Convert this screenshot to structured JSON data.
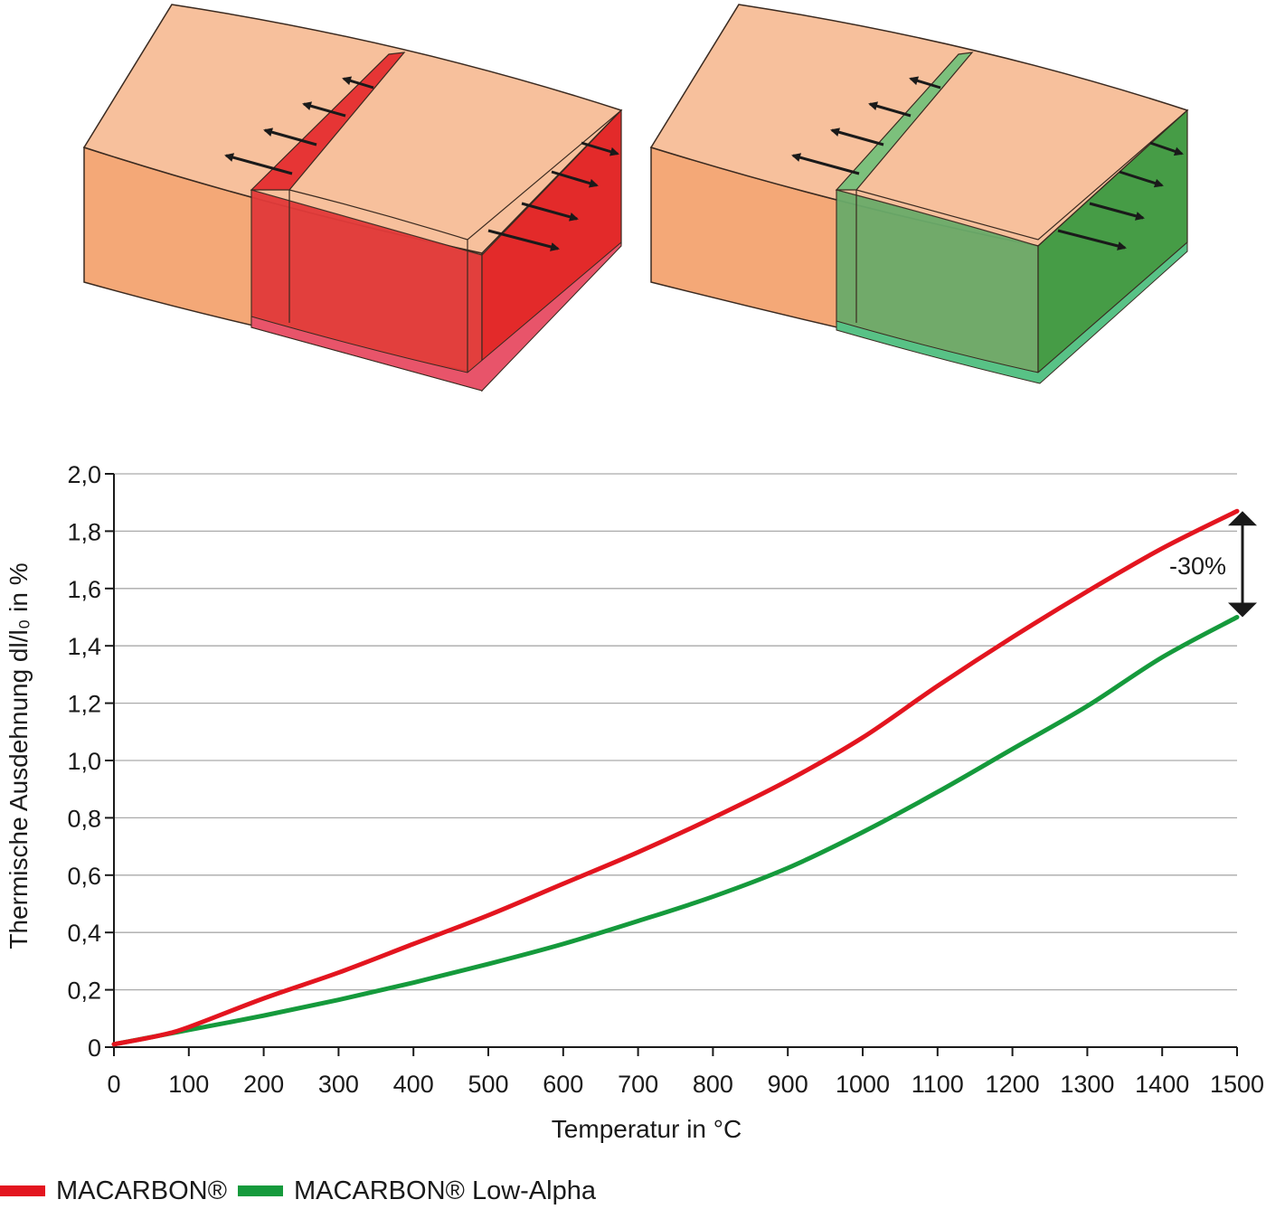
{
  "colors": {
    "macarbon": "#e3151f",
    "low_alpha": "#159a3c",
    "block_top": "#f7c09c",
    "block_side": "#f4a877",
    "red_fill": "#e7302f",
    "green_fill": "#49a14a",
    "grid": "#aaaaaa"
  },
  "chart_data": {
    "type": "line",
    "xlabel": "Temperatur in °C",
    "ylabel": "Thermische Ausdehnung dl/l₀ in %",
    "xlim": [
      0,
      1500
    ],
    "ylim": [
      0,
      2.0
    ],
    "x_ticks": [
      "0",
      "100",
      "200",
      "300",
      "400",
      "500",
      "600",
      "700",
      "800",
      "900",
      "1000",
      "1100",
      "1200",
      "1300",
      "1400",
      "1500"
    ],
    "y_ticks": [
      "0",
      "0,2",
      "0,4",
      "0,6",
      "0,8",
      "1,0",
      "1,2",
      "1,4",
      "1,6",
      "1,8",
      "2,0"
    ],
    "grid": "horizontal",
    "annotation": "-30%",
    "series": [
      {
        "name": "MACARBON®",
        "x": [
          0,
          60,
          100,
          200,
          300,
          400,
          500,
          600,
          700,
          800,
          900,
          1000,
          1100,
          1200,
          1300,
          1400,
          1500
        ],
        "y": [
          0.01,
          0.04,
          0.07,
          0.17,
          0.26,
          0.36,
          0.46,
          0.57,
          0.68,
          0.8,
          0.93,
          1.08,
          1.26,
          1.43,
          1.59,
          1.74,
          1.87
        ]
      },
      {
        "name": "MACARBON® Low-Alpha",
        "x": [
          0,
          60,
          100,
          200,
          300,
          400,
          500,
          600,
          700,
          800,
          900,
          1000,
          1100,
          1200,
          1300,
          1400,
          1500
        ],
        "y": [
          0.01,
          0.04,
          0.06,
          0.11,
          0.165,
          0.225,
          0.29,
          0.36,
          0.44,
          0.525,
          0.625,
          0.75,
          0.89,
          1.04,
          1.19,
          1.36,
          1.5
        ]
      }
    ]
  },
  "legend": [
    {
      "label": "MACARBON®"
    },
    {
      "label": "MACARBON® Low-Alpha"
    }
  ]
}
